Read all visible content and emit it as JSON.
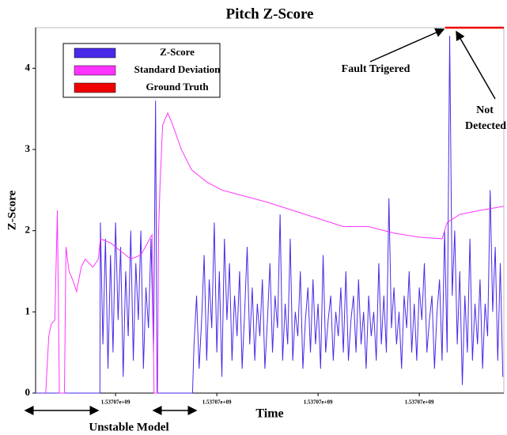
{
  "chart_data": {
    "type": "line",
    "title": "Pitch Z-Score",
    "xlabel": "Time",
    "ylabel": "Z-Score",
    "xlim": [
      4.2,
      96.7
    ],
    "ylim": [
      0,
      4.5
    ],
    "xticks": [
      {
        "value": 20,
        "label": "1.53707e+09"
      },
      {
        "value": 40,
        "label": "1.53707e+09"
      },
      {
        "value": 60,
        "label": "1.53707e+09"
      },
      {
        "value": 80,
        "label": "1.53707e+09"
      }
    ],
    "yticks": [
      0,
      1,
      2,
      3,
      4
    ],
    "legend": "upper left",
    "annotations": [
      "Fault Trigered",
      "Not Detected",
      "Unstable Model"
    ],
    "series": [
      {
        "name": "Z-Score",
        "color": "#4a2ae8",
        "x": [
          4.2,
          16.9,
          17,
          17.5,
          18,
          18.5,
          19,
          19.5,
          20,
          20.5,
          21,
          21.5,
          22,
          22.5,
          23,
          23.5,
          24,
          24.5,
          25,
          25.5,
          26,
          26.5,
          27,
          27.5,
          27.9,
          28.2,
          35.2,
          35.5,
          36,
          36.5,
          37,
          37.5,
          38,
          38.5,
          39,
          39.5,
          40,
          40.5,
          41,
          41.5,
          42,
          42.5,
          43,
          43.5,
          44,
          44.5,
          45,
          45.5,
          46,
          46.5,
          47,
          47.5,
          48,
          48.5,
          49,
          49.5,
          50,
          50.5,
          51,
          51.5,
          52,
          52.5,
          53,
          53.5,
          54,
          54.5,
          55,
          55.5,
          56,
          56.5,
          57,
          57.5,
          58,
          58.5,
          59,
          59.5,
          60,
          60.5,
          61,
          61.5,
          62,
          62.5,
          63,
          63.5,
          64,
          64.5,
          65,
          65.5,
          66,
          66.5,
          67,
          67.5,
          68,
          68.5,
          69,
          69.5,
          70,
          70.5,
          71,
          71.5,
          72,
          72.5,
          73,
          73.5,
          74,
          74.5,
          75,
          75.5,
          76,
          76.5,
          77,
          77.5,
          78,
          78.5,
          79,
          79.5,
          80,
          80.5,
          81,
          81.5,
          82,
          82.5,
          83,
          83.5,
          84,
          84.5,
          85,
          85.5,
          86,
          86.5,
          87,
          87.5,
          88,
          88.5,
          89,
          89.5,
          90,
          90.5,
          91,
          91.5,
          92,
          92.5,
          93,
          93.5,
          94,
          94.5,
          95,
          95.5,
          96,
          96.5
        ],
        "values": [
          0,
          0,
          2.1,
          0.6,
          1.9,
          0.3,
          1.7,
          0.5,
          2.1,
          0.9,
          1.8,
          0.2,
          1.5,
          0.7,
          2.0,
          0.4,
          1.6,
          0.9,
          2.0,
          0.3,
          1.3,
          0.8,
          1.9,
          0.5,
          3.6,
          0,
          0,
          0.6,
          1.2,
          0.3,
          0.9,
          1.7,
          0.4,
          1.4,
          0.8,
          2.1,
          0.5,
          1.5,
          0.2,
          1.9,
          0.9,
          1.6,
          0.4,
          1.2,
          0.7,
          1.5,
          0.3,
          1.0,
          1.8,
          0.6,
          1.3,
          0.4,
          1.1,
          0.7,
          1.4,
          0.3,
          0.9,
          1.6,
          0.5,
          1.2,
          0.8,
          2.2,
          0.4,
          1.1,
          0.6,
          1.9,
          0.4,
          1.0,
          0.7,
          1.5,
          0.3,
          0.9,
          1.3,
          0.5,
          1.4,
          0.6,
          1.1,
          0.3,
          1.7,
          0.5,
          0.9,
          1.2,
          0.4,
          1.0,
          0.7,
          1.3,
          0.5,
          1.5,
          0.4,
          0.9,
          1.2,
          0.5,
          1.4,
          0.6,
          1.0,
          0.3,
          1.2,
          0.7,
          1.0,
          0.4,
          1.6,
          0.6,
          1.2,
          0.5,
          2.4,
          0.8,
          1.3,
          0.6,
          1.0,
          0.3,
          1.2,
          0.8,
          1.5,
          0.5,
          1.1,
          0.4,
          1.3,
          0.9,
          1.6,
          0.5,
          0.9,
          1.2,
          0.3,
          1.0,
          1.4,
          0.4,
          2.0,
          0.5,
          4.4,
          1.2,
          2.0,
          0.6,
          1.5,
          0.1,
          1.2,
          0.5,
          1.9,
          0.4,
          1.1,
          0.6,
          1.4,
          0.3,
          1.1,
          0.7,
          2.5,
          1.0,
          1.8,
          0.4,
          1.6,
          0.2
        ]
      },
      {
        "name": "Standard Deviation",
        "color": "#ff33ff",
        "x": [
          6.2,
          6.8,
          7.3,
          8.0,
          8.5,
          8.9,
          9.9,
          10.2,
          10.8,
          11.5,
          12.3,
          13.2,
          14.0,
          15.5,
          16.6,
          17.0,
          19,
          21,
          23,
          25,
          27.2,
          27.6,
          28.3,
          28.5,
          28.8,
          29.3,
          30.3,
          31.3,
          33,
          35,
          38,
          41,
          44,
          50,
          55,
          60,
          65,
          70,
          75,
          80,
          84.5,
          85.5,
          88,
          92,
          96.7
        ],
        "values": [
          0,
          0.7,
          0.85,
          0.9,
          2.25,
          0,
          0,
          1.8,
          1.5,
          1.4,
          1.25,
          1.55,
          1.65,
          1.55,
          1.65,
          1.9,
          1.85,
          1.75,
          1.65,
          1.7,
          1.95,
          0,
          0,
          2.0,
          2.6,
          3.3,
          3.45,
          3.3,
          3.0,
          2.75,
          2.6,
          2.5,
          2.45,
          2.35,
          2.25,
          2.15,
          2.05,
          2.05,
          1.97,
          1.92,
          1.9,
          2.1,
          2.2,
          2.25,
          2.3
        ]
      },
      {
        "name": "Ground Truth",
        "color": "#ee0000",
        "x": [
          85.1,
          96.7
        ],
        "values": [
          4.5,
          4.5
        ]
      }
    ]
  }
}
